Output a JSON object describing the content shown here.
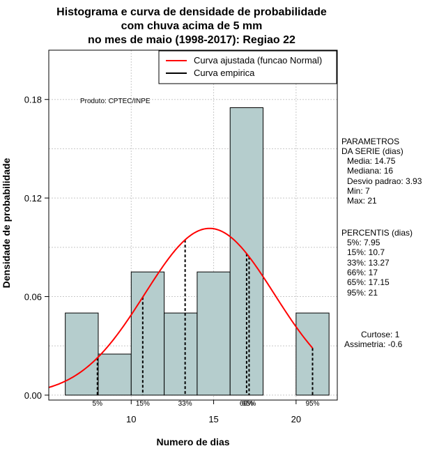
{
  "chart_data": {
    "type": "bar",
    "title_lines": [
      "Histograma e curva de densidade de probabilidade",
      "com chuva acima de 5 mm",
      "no mes de maio (1998-2017): Regiao 22"
    ],
    "xlabel": "Numero de dias",
    "ylabel": "Densidade de probabilidade",
    "xlim": [
      5,
      22.5
    ],
    "ylim": [
      -0.003,
      0.21
    ],
    "x_ticks": [
      10,
      15,
      20
    ],
    "y_ticks": [
      0.0,
      0.06,
      0.12,
      0.18
    ],
    "y_tick_labels": [
      "0.00",
      "0.06",
      "0.12",
      "0.18"
    ],
    "grid": true,
    "bar_color": "#b5cdcd",
    "bins": [
      {
        "start": 6,
        "end": 8,
        "density": 0.05
      },
      {
        "start": 8,
        "end": 10,
        "density": 0.025
      },
      {
        "start": 10,
        "end": 12,
        "density": 0.075
      },
      {
        "start": 12,
        "end": 14,
        "density": 0.05
      },
      {
        "start": 14,
        "end": 16,
        "density": 0.075
      },
      {
        "start": 16,
        "end": 18,
        "density": 0.175
      },
      {
        "start": 18,
        "end": 20,
        "density": 0
      },
      {
        "start": 20,
        "end": 22,
        "density": 0.05
      }
    ],
    "normal_curve": {
      "mean": 14.75,
      "sd": 3.93,
      "color": "#ff0000",
      "x_range": [
        5,
        21
      ]
    },
    "percentile_lines": [
      {
        "label": "5%",
        "value": 7.95
      },
      {
        "label": "15%",
        "value": 10.7
      },
      {
        "label": "33%",
        "value": 13.27
      },
      {
        "label": "66%",
        "value": 17
      },
      {
        "label": "65%",
        "value": 17.15
      },
      {
        "label": "95%",
        "value": 21
      }
    ],
    "legend": {
      "position": "top-right",
      "entries": [
        {
          "label": "Curva ajustada (funcao Normal)",
          "color": "#ff0000"
        },
        {
          "label": "Curva empirica",
          "color": "#000000"
        }
      ]
    },
    "annotation": "Produto: CPTEC/INPE",
    "parametros": {
      "header1": "PARAMETROS",
      "header2": "DA SERIE (dias)",
      "lines": [
        "Media: 14.75",
        "Mediana: 16",
        "Desvio padrao: 3.93",
        "Min: 7",
        "Max: 21"
      ]
    },
    "percentis": {
      "header": "PERCENTIS (dias)",
      "lines": [
        "5%: 7.95",
        "15%: 10.7",
        "33%: 13.27",
        "66%: 17",
        "65%: 17.15",
        "95%: 21"
      ]
    },
    "shape": {
      "curtose": "Curtose: 1",
      "assimetria": "Assimetria: -0.6"
    }
  }
}
